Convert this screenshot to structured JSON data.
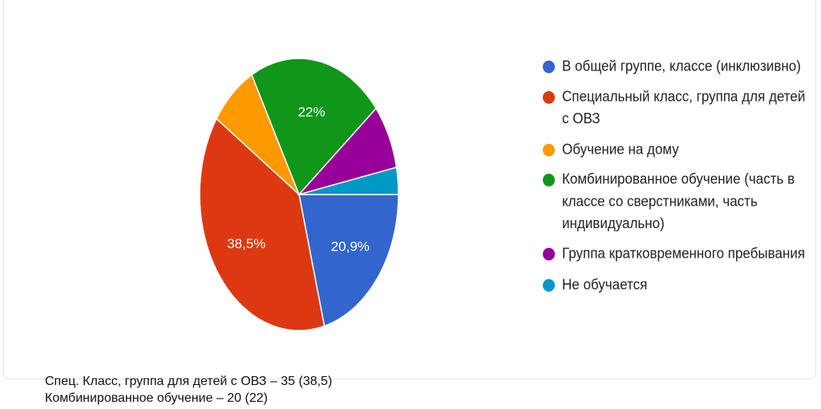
{
  "chart_data": {
    "type": "pie",
    "title": "",
    "slices": [
      {
        "label": "В общей группе, классе (инклюзивно)",
        "value": 20.9,
        "display_label": "20,9%",
        "color": "#3366cc"
      },
      {
        "label": "Специальный класс, группа для детей с ОВЗ",
        "value": 38.5,
        "display_label": "38,5%",
        "color": "#dc3912"
      },
      {
        "label": "Обучение на дому",
        "value": 7.7,
        "display_label": "",
        "color": "#ff9900"
      },
      {
        "label": "Комбинированное обучение (часть в классе со сверстниками, часть индивидуально)",
        "value": 22,
        "display_label": "22%",
        "color": "#109618"
      },
      {
        "label": "Группа кратковременного пребывания",
        "value": 7.7,
        "display_label": "",
        "color": "#990099"
      },
      {
        "label": "Не обучается",
        "value": 3.2,
        "display_label": "",
        "color": "#0099c6"
      }
    ],
    "legend_position": "right"
  },
  "notes": [
    "Спец. Класс, группа для детей с ОВЗ – 35 (38,5)",
    "Комбинированное обучение – 20 (22)"
  ]
}
